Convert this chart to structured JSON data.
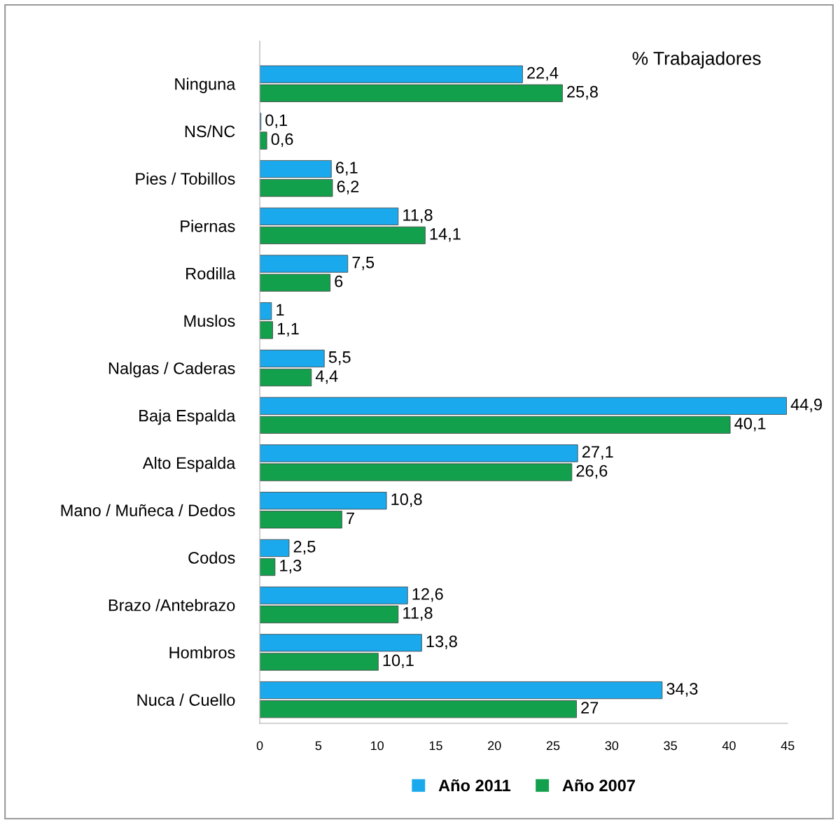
{
  "chart_data": {
    "type": "bar",
    "orientation": "horizontal",
    "title": "% Trabajadores",
    "categories": [
      "Ninguna",
      "NS/NC",
      "Pies / Tobillos",
      "Piernas",
      "Rodilla",
      "Muslos",
      "Nalgas / Caderas",
      "Baja Espalda",
      "Alto Espalda",
      "Mano / Muñeca / Dedos",
      "Codos",
      "Brazo /Antebrazo",
      "Hombros",
      "Nuca / Cuello"
    ],
    "series": [
      {
        "name": "Año 2011",
        "color": "#1aa9ec",
        "values": [
          22.4,
          0.1,
          6.1,
          11.8,
          7.5,
          1,
          5.5,
          44.9,
          27.1,
          10.8,
          2.5,
          12.6,
          13.8,
          34.3
        ],
        "value_labels": [
          "22,4",
          "0,1",
          "6,1",
          "11,8",
          "7,5",
          "1",
          "5,5",
          "44,9",
          "27,1",
          "10,8",
          "2,5",
          "12,6",
          "13,8",
          "34,3"
        ]
      },
      {
        "name": "Año 2007",
        "color": "#12a04c",
        "values": [
          25.8,
          0.6,
          6.2,
          14.1,
          6,
          1.1,
          4.4,
          40.1,
          26.6,
          7,
          1.3,
          11.8,
          10.1,
          27
        ],
        "value_labels": [
          "25,8",
          "0,6",
          "6,2",
          "14,1",
          "6",
          "1,1",
          "4,4",
          "40,1",
          "26,6",
          "7",
          "1,3",
          "11,8",
          "10,1",
          "27"
        ]
      }
    ],
    "xlim": [
      0,
      45
    ],
    "xticks": [
      0,
      5,
      10,
      15,
      20,
      25,
      30,
      35,
      40,
      45
    ],
    "grid": false,
    "legend": "bottom"
  }
}
